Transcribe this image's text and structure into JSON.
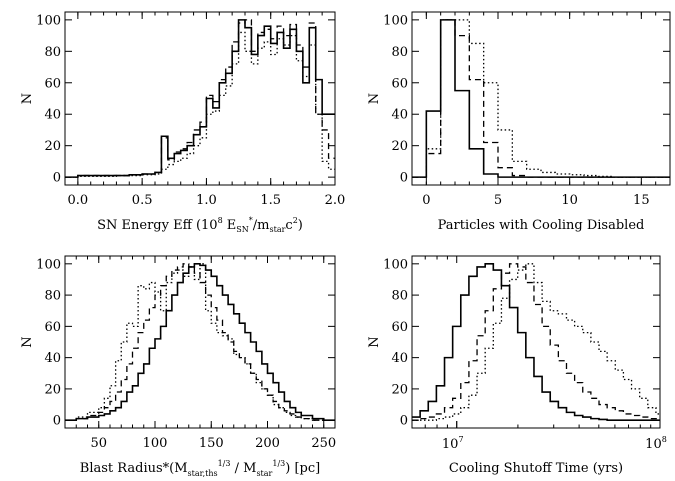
{
  "chart_data": [
    {
      "type": "histogram",
      "id": "sn",
      "xlabel": "SN Energy Eff (10^8 E_SN*/m_star c^2)",
      "xlabel_parts": {
        "a": "SN Energy Eff (10",
        "b": "8",
        "c": " E",
        "d": "SN",
        "e": "*",
        "f": "/m",
        "g": "star",
        "h": "c",
        "i": "2",
        "j": ")"
      },
      "ylabel": "N",
      "xlim": [
        -0.1,
        2.0
      ],
      "ylim": [
        -5,
        105
      ],
      "xscale": "linear",
      "xticks": [
        "0.0",
        "0.5",
        "1.0",
        "1.5",
        "2.0"
      ],
      "xtick_values": [
        0,
        0.5,
        1.0,
        1.5,
        2.0
      ],
      "yticks": [
        "0",
        "20",
        "40",
        "60",
        "80",
        "100"
      ],
      "ytick_values": [
        0,
        20,
        40,
        60,
        80,
        100
      ],
      "bin_edges": [
        -0.1,
        0.0,
        0.1,
        0.2,
        0.3,
        0.4,
        0.5,
        0.6,
        0.65,
        0.7,
        0.75,
        0.8,
        0.85,
        0.9,
        0.95,
        1.0,
        1.05,
        1.1,
        1.15,
        1.2,
        1.25,
        1.3,
        1.35,
        1.4,
        1.45,
        1.5,
        1.55,
        1.6,
        1.65,
        1.7,
        1.75,
        1.8,
        1.85,
        1.9,
        1.95,
        2.0
      ],
      "series": [
        {
          "style": "solid",
          "values": [
            0,
            1,
            1,
            1,
            1,
            1.5,
            2,
            3,
            26,
            12,
            15,
            17,
            20,
            27,
            32,
            50,
            44,
            60,
            66,
            80,
            100,
            95,
            78,
            90,
            96,
            85,
            92,
            82,
            94,
            80,
            60,
            95,
            62,
            40,
            40
          ]
        },
        {
          "style": "dashed",
          "values": [
            0,
            1,
            1,
            1,
            1,
            1.5,
            2,
            3,
            25,
            11,
            16,
            18,
            22,
            30,
            35,
            52,
            48,
            62,
            70,
            86,
            98,
            100,
            80,
            92,
            94,
            88,
            96,
            90,
            97,
            84,
            70,
            98,
            40,
            30,
            12
          ]
        },
        {
          "style": "dotted",
          "values": [
            0,
            0.5,
            0.5,
            0.5,
            1,
            1,
            1.5,
            2,
            5,
            8,
            10,
            12,
            15,
            20,
            25,
            40,
            42,
            52,
            58,
            72,
            92,
            80,
            72,
            82,
            86,
            78,
            88,
            84,
            90,
            74,
            64,
            84,
            40,
            10,
            5
          ]
        }
      ]
    },
    {
      "type": "histogram",
      "id": "cooling",
      "xlabel": "Particles with Cooling Disabled",
      "ylabel": "N",
      "xlim": [
        -1,
        17
      ],
      "ylim": [
        -5,
        105
      ],
      "xscale": "linear",
      "xticks": [
        "0",
        "5",
        "10",
        "15"
      ],
      "xtick_values": [
        0,
        5,
        10,
        15
      ],
      "yticks": [
        "0",
        "20",
        "40",
        "60",
        "80",
        "100"
      ],
      "ytick_values": [
        0,
        20,
        40,
        60,
        80,
        100
      ],
      "bin_edges": [
        -1,
        0,
        1,
        2,
        3,
        4,
        5,
        6,
        7,
        8,
        9,
        10,
        11,
        12,
        13,
        14,
        15,
        16,
        17
      ],
      "series": [
        {
          "style": "solid",
          "values": [
            0,
            42,
            100,
            55,
            18,
            2,
            0,
            0,
            0,
            0,
            0,
            0,
            0,
            0,
            0,
            0,
            0,
            0
          ]
        },
        {
          "style": "dashed",
          "values": [
            0,
            15,
            100,
            90,
            62,
            22,
            6,
            1,
            0,
            0,
            0,
            0,
            0,
            0,
            0,
            0,
            0,
            0
          ]
        },
        {
          "style": "dotted",
          "values": [
            0,
            18,
            100,
            100,
            85,
            60,
            30,
            10,
            5,
            3,
            2,
            1.5,
            1,
            0.5,
            0,
            0,
            0,
            0
          ]
        }
      ]
    },
    {
      "type": "histogram",
      "id": "blast",
      "xlabel": "Blast Radius*(M_star,ths^1/3 / M_star^1/3) [pc]",
      "xlabel_parts": {
        "a": "Blast Radius*(M",
        "b": "star,ths",
        "c": "1/3",
        "d": " / M",
        "e": "star",
        "f": "1/3",
        "g": ") [pc]"
      },
      "ylabel": "N",
      "xlim": [
        20,
        260
      ],
      "ylim": [
        -5,
        105
      ],
      "xscale": "linear",
      "xticks": [
        "50",
        "100",
        "150",
        "200",
        "250"
      ],
      "xtick_values": [
        50,
        100,
        150,
        200,
        250
      ],
      "yticks": [
        "0",
        "20",
        "40",
        "60",
        "80",
        "100"
      ],
      "ytick_values": [
        0,
        20,
        40,
        60,
        80,
        100
      ],
      "bin_edges": [
        20,
        30,
        40,
        50,
        55,
        60,
        65,
        70,
        75,
        80,
        85,
        90,
        95,
        100,
        105,
        110,
        115,
        120,
        125,
        130,
        135,
        140,
        145,
        150,
        155,
        160,
        165,
        170,
        175,
        180,
        185,
        190,
        195,
        200,
        205,
        210,
        215,
        220,
        225,
        230,
        240,
        250,
        260
      ],
      "series": [
        {
          "style": "solid",
          "values": [
            0,
            1,
            2,
            3,
            4,
            6,
            8,
            12,
            18,
            22,
            30,
            36,
            46,
            52,
            60,
            70,
            80,
            88,
            94,
            98,
            100,
            99,
            96,
            92,
            86,
            80,
            74,
            68,
            62,
            56,
            50,
            44,
            36,
            30,
            24,
            18,
            12,
            8,
            5,
            3,
            1,
            0
          ]
        },
        {
          "style": "dashed",
          "values": [
            0,
            1,
            3,
            5,
            8,
            12,
            18,
            26,
            36,
            46,
            56,
            64,
            72,
            80,
            86,
            92,
            96,
            98,
            100,
            98,
            94,
            88,
            80,
            72,
            64,
            56,
            50,
            44,
            40,
            36,
            30,
            26,
            20,
            16,
            12,
            8,
            6,
            4,
            2,
            1,
            0,
            0
          ]
        },
        {
          "style": "dotted",
          "values": [
            0,
            2,
            5,
            8,
            14,
            22,
            38,
            50,
            62,
            60,
            86,
            84,
            88,
            82,
            70,
            88,
            94,
            96,
            92,
            98,
            90,
            100,
            70,
            62,
            56,
            54,
            52,
            42,
            40,
            36,
            30,
            24,
            20,
            16,
            10,
            8,
            5,
            3,
            2,
            1,
            0,
            0
          ]
        }
      ]
    },
    {
      "type": "histogram",
      "id": "shutoff",
      "xlabel": "Cooling Shutoff Time (yrs)",
      "ylabel": "N",
      "xlim_log10": [
        6.78,
        8.0
      ],
      "ylim": [
        -5,
        105
      ],
      "xscale": "log",
      "xticks": [
        "10^7",
        "10^8"
      ],
      "xtick_values": [
        10000000,
        100000000
      ],
      "yticks": [
        "0",
        "20",
        "40",
        "60",
        "80",
        "100"
      ],
      "ytick_values": [
        0,
        20,
        40,
        60,
        80,
        100
      ],
      "log10_bin_edges": [
        6.78,
        6.82,
        6.86,
        6.9,
        6.94,
        6.98,
        7.02,
        7.06,
        7.1,
        7.14,
        7.18,
        7.22,
        7.26,
        7.3,
        7.34,
        7.38,
        7.42,
        7.46,
        7.5,
        7.54,
        7.58,
        7.62,
        7.66,
        7.7,
        7.74,
        7.78,
        7.82,
        7.86,
        7.9,
        7.94,
        7.98,
        8.0
      ],
      "series": [
        {
          "style": "solid",
          "values": [
            2,
            6,
            12,
            22,
            40,
            60,
            80,
            92,
            98,
            100,
            96,
            86,
            72,
            56,
            40,
            28,
            18,
            12,
            8,
            5,
            3,
            2,
            1,
            0.5,
            0,
            0,
            0,
            0,
            0,
            0,
            0
          ]
        },
        {
          "style": "dashed",
          "values": [
            0,
            1,
            2,
            4,
            8,
            14,
            24,
            38,
            54,
            70,
            84,
            94,
            100,
            98,
            88,
            74,
            60,
            48,
            38,
            30,
            24,
            18,
            14,
            10,
            8,
            6,
            4,
            3,
            2,
            1,
            1
          ]
        },
        {
          "style": "dotted",
          "values": [
            0,
            0,
            0,
            1,
            2,
            4,
            8,
            16,
            30,
            46,
            62,
            78,
            90,
            96,
            100,
            88,
            76,
            70,
            68,
            64,
            60,
            56,
            50,
            44,
            38,
            32,
            26,
            20,
            14,
            8,
            4
          ]
        }
      ]
    }
  ]
}
